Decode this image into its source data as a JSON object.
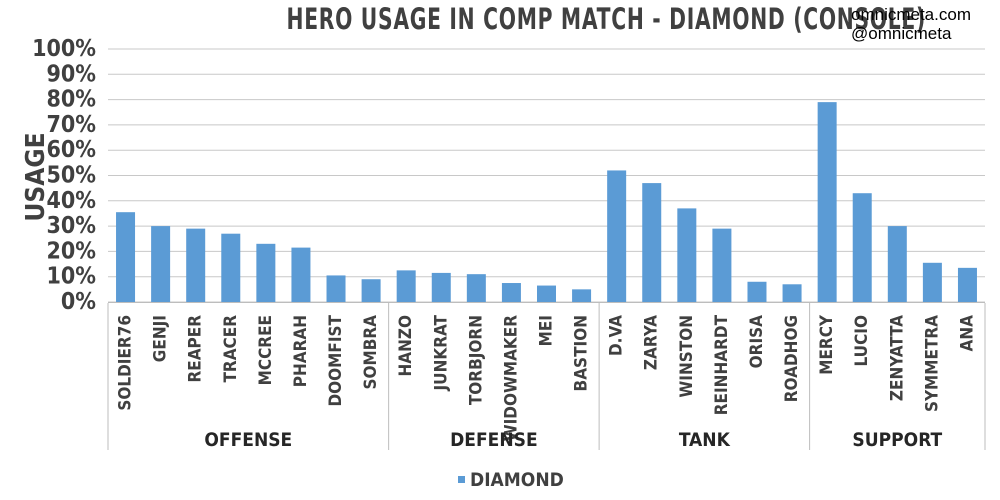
{
  "chart_data": {
    "type": "bar",
    "title": "HERO USAGE IN COMP MATCH - DIAMOND (CONSOLE)",
    "ylabel": "USAGE",
    "ylim": [
      0,
      100
    ],
    "yticks": [
      "0%",
      "10%",
      "20%",
      "30%",
      "40%",
      "50%",
      "60%",
      "70%",
      "80%",
      "90%",
      "100%"
    ],
    "groups": [
      {
        "name": "OFFENSE",
        "categories": [
          "SOLDIER76",
          "GENJI",
          "REAPER",
          "TRACER",
          "MCCREE",
          "PHARAH",
          "DOOMFIST",
          "SOMBRA"
        ],
        "values": [
          35.5,
          30,
          29,
          27,
          23,
          21.5,
          10.5,
          9
        ]
      },
      {
        "name": "DEFENSE",
        "categories": [
          "HANZO",
          "JUNKRAT",
          "TORBJORN",
          "WIDOWMAKER",
          "MEI",
          "BASTION"
        ],
        "values": [
          12.5,
          11.5,
          11,
          7.5,
          6.5,
          5
        ]
      },
      {
        "name": "TANK",
        "categories": [
          "D.VA",
          "ZARYA",
          "WINSTON",
          "REINHARDT",
          "ORISA",
          "ROADHOG"
        ],
        "values": [
          52,
          47,
          37,
          29,
          8,
          7
        ]
      },
      {
        "name": "SUPPORT",
        "categories": [
          "MERCY",
          "LUCIO",
          "ZENYATTA",
          "SYMMETRA",
          "ANA"
        ],
        "values": [
          79,
          43,
          30,
          15.5,
          13.5
        ]
      }
    ],
    "series": [
      {
        "name": "DIAMOND",
        "color": "#5b9bd5"
      }
    ],
    "grid": true,
    "legend": "bottom"
  },
  "credits": [
    "omnicmeta.com",
    "@omnicmeta"
  ]
}
